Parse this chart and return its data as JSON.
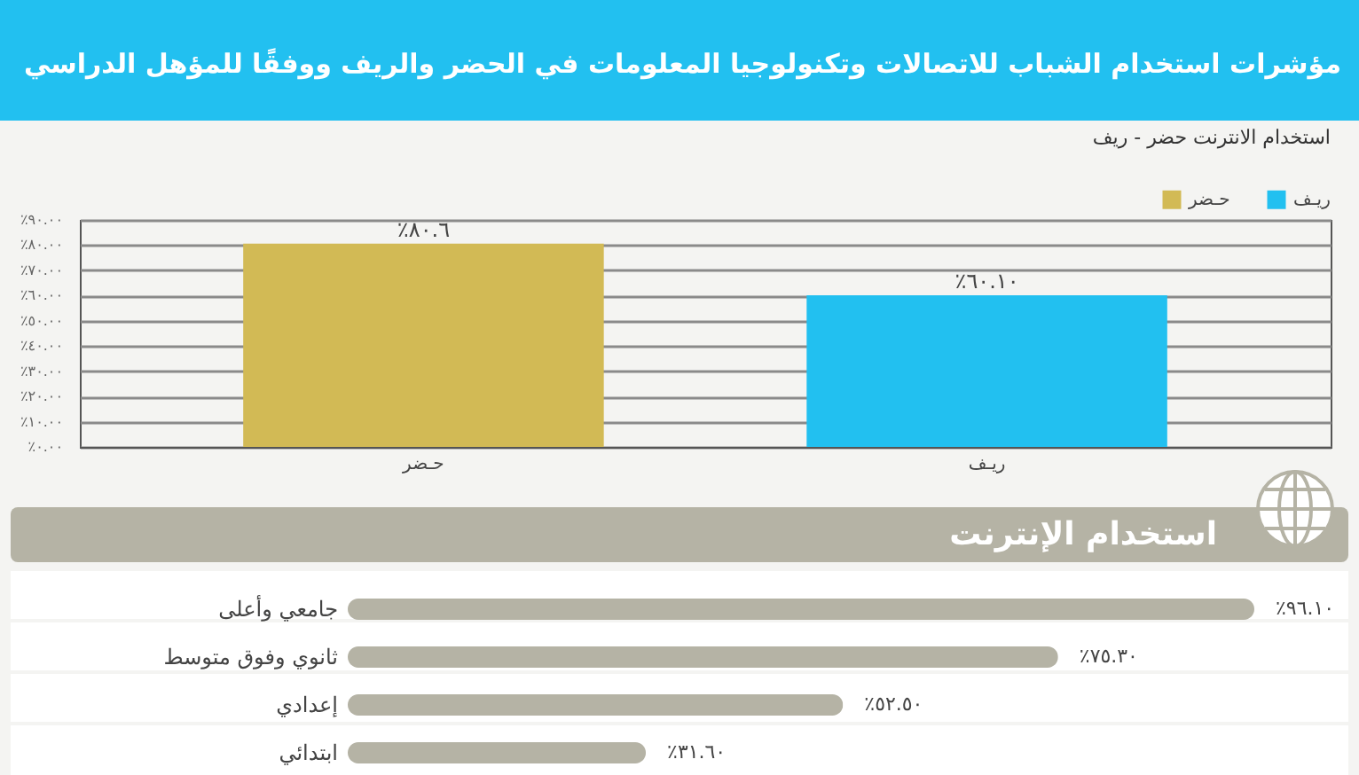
{
  "chart_data": [
    {
      "type": "bar",
      "title": "مؤشرات استخدام الشباب للاتصالات وتكنولوجيا المعلومات في الحضر والريف ووفقًا للمؤهل الدراسي",
      "subtitle": "استخدام الانترنت حضر - ريف",
      "categories": [
        "حـضر",
        "ريـف"
      ],
      "series": [
        {
          "name": "حـضر",
          "color": "#d2ba55",
          "values": [
            80.6,
            null
          ],
          "value_labels": [
            "٪٨٠.٦",
            null
          ]
        },
        {
          "name": "ريـف",
          "color": "#22c0f0",
          "values": [
            null,
            60.1
          ],
          "value_labels": [
            null,
            "٪٦٠.١٠"
          ]
        }
      ],
      "ylim": [
        0,
        90
      ],
      "yticks": [
        {
          "value": 0,
          "label": "٪٠.٠٠"
        },
        {
          "value": 10,
          "label": "٪١٠.٠٠"
        },
        {
          "value": 20,
          "label": "٪٢٠.٠٠"
        },
        {
          "value": 30,
          "label": "٪٣٠.٠٠"
        },
        {
          "value": 40,
          "label": "٪٤٠.٠٠"
        },
        {
          "value": 50,
          "label": "٪٥٠.٠٠"
        },
        {
          "value": 60,
          "label": "٪٦٠.٠٠"
        },
        {
          "value": 70,
          "label": "٪٧٠.٠٠"
        },
        {
          "value": 80,
          "label": "٪٨٠.٠٠"
        },
        {
          "value": 90,
          "label": "٪٩٠.٠٠"
        }
      ],
      "grid": "y",
      "legend": "top right"
    },
    {
      "type": "bar",
      "title": "استخدام الإنترنت",
      "orientation": "horizontal",
      "categories": [
        "جامعي وأعلى",
        "ثانوي وفوق متوسط",
        "إعدادي",
        "ابتدائي"
      ],
      "values": [
        96.1,
        75.3,
        52.5,
        31.6
      ],
      "color": "#b5b3a5",
      "value_labels": [
        "٪٩٦.١٠",
        "٪٧٥.٣٠",
        "٪٥٢.٥٠",
        "٪٣١.٦٠"
      ]
    }
  ]
}
